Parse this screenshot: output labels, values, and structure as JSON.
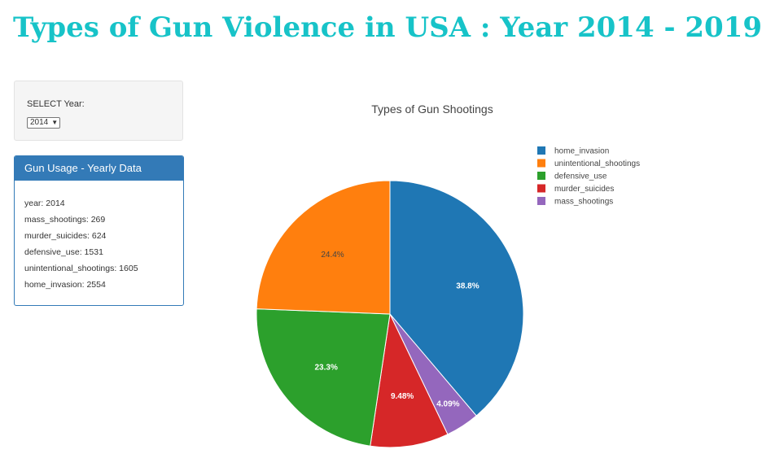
{
  "page": {
    "title": "Types of Gun Violence in USA : Year 2014 - 2019",
    "title_color": "#17c3c8"
  },
  "year_selector": {
    "label": "SELECT Year:",
    "selected": "2014"
  },
  "stats_panel": {
    "heading": "Gun Usage - Yearly Data",
    "rows": [
      "year: 2014",
      "mass_shootings: 269",
      "murder_suicides: 624",
      "defensive_use: 1531",
      "unintentional_shootings: 1605",
      "home_invasion: 2554"
    ]
  },
  "chart_data": {
    "type": "pie",
    "title": "Types of Gun Shootings",
    "legend_position": "top-right",
    "slices": [
      {
        "label": "home_invasion",
        "value": 2554,
        "percent_label": "38.8%",
        "color": "#1f77b4",
        "text_color": "#ffffff"
      },
      {
        "label": "unintentional_shootings",
        "value": 1605,
        "percent_label": "24.4%",
        "color": "#ff7f0e",
        "text_color": "#444444"
      },
      {
        "label": "defensive_use",
        "value": 1531,
        "percent_label": "23.3%",
        "color": "#2ca02c",
        "text_color": "#ffffff"
      },
      {
        "label": "murder_suicides",
        "value": 624,
        "percent_label": "9.48%",
        "color": "#d62728",
        "text_color": "#ffffff"
      },
      {
        "label": "mass_shootings",
        "value": 269,
        "percent_label": "4.09%",
        "color": "#9467bd",
        "text_color": "#ffffff"
      }
    ],
    "pie_order": [
      "home_invasion",
      "mass_shootings",
      "murder_suicides",
      "defensive_use",
      "unintentional_shootings"
    ],
    "legend_order": [
      "home_invasion",
      "unintentional_shootings",
      "defensive_use",
      "murder_suicides",
      "mass_shootings"
    ]
  }
}
